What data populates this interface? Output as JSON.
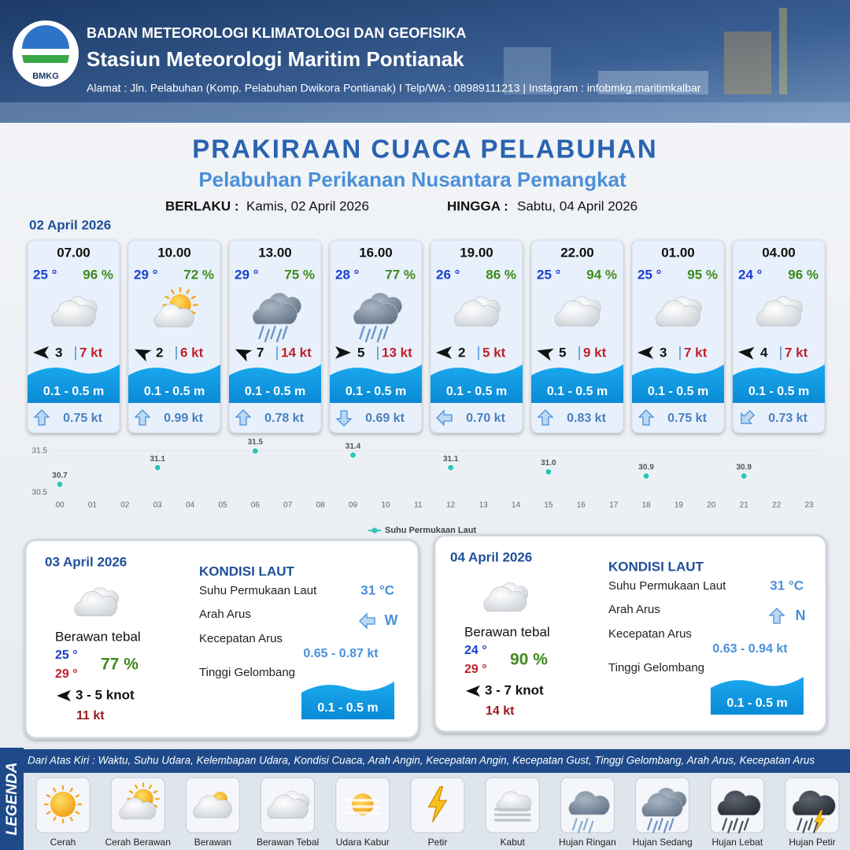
{
  "header": {
    "agency": "BADAN METEOROLOGI KLIMATOLOGI DAN GEOFISIKA",
    "station": "Stasiun Meteorologi Maritim Pontianak",
    "address": "Alamat : Jln. Pelabuhan (Komp. Pelabuhan Dwikora Pontianak) I Telp/WA : 08989111213 | Instagram : infobmkg.maritimkalbar",
    "logo": "BMKG"
  },
  "title": "PRAKIRAAN CUACA PELABUHAN",
  "subtitle": "Pelabuhan Perikanan Nusantara Pemangkat",
  "validity": {
    "from_label": "BERLAKU :",
    "from": "Kamis, 02 April 2026",
    "to_label": "HINGGA :",
    "to": "Sabtu, 04 April 2026"
  },
  "today": {
    "date": "02 April 2026",
    "forecasts": [
      {
        "time": "07.00",
        "temp": "25 °",
        "humidity": "96 %",
        "wind": "3",
        "gust": "7 kt",
        "wave": "0.1 - 0.5 m",
        "current": "0.75 kt"
      },
      {
        "time": "10.00",
        "temp": "29 °",
        "humidity": "72 %",
        "wind": "2",
        "gust": "6 kt",
        "wave": "0.1 - 0.5 m",
        "current": "0.99 kt"
      },
      {
        "time": "13.00",
        "temp": "29 °",
        "humidity": "75 %",
        "wind": "7",
        "gust": "14 kt",
        "wave": "0.1 - 0.5 m",
        "current": "0.78 kt"
      },
      {
        "time": "16.00",
        "temp": "28 °",
        "humidity": "77 %",
        "wind": "5",
        "gust": "13 kt",
        "wave": "0.1 - 0.5 m",
        "current": "0.69 kt"
      },
      {
        "time": "19.00",
        "temp": "26 °",
        "humidity": "86 %",
        "wind": "2",
        "gust": "5 kt",
        "wave": "0.1 - 0.5 m",
        "current": "0.70 kt"
      },
      {
        "time": "22.00",
        "temp": "25 °",
        "humidity": "94 %",
        "wind": "5",
        "gust": "9 kt",
        "wave": "0.1 - 0.5 m",
        "current": "0.83 kt"
      },
      {
        "time": "01.00",
        "temp": "25 °",
        "humidity": "95 %",
        "wind": "3",
        "gust": "7 kt",
        "wave": "0.1 - 0.5 m",
        "current": "0.75 kt"
      },
      {
        "time": "04.00",
        "temp": "24 °",
        "humidity": "96 %",
        "wind": "4",
        "gust": "7 kt",
        "wave": "0.1 - 0.5 m",
        "current": "0.73 kt"
      }
    ]
  },
  "chart_data": {
    "type": "scatter",
    "categories": [
      "00",
      "01",
      "02",
      "03",
      "04",
      "05",
      "06",
      "07",
      "08",
      "09",
      "10",
      "11",
      "12",
      "13",
      "14",
      "15",
      "16",
      "17",
      "18",
      "19",
      "20",
      "21",
      "22",
      "23"
    ],
    "series": [
      {
        "name": "Suhu Permukaan Laut",
        "color": "#2ec4b6",
        "values": [
          30.7,
          null,
          null,
          31.1,
          null,
          null,
          31.5,
          null,
          null,
          31.4,
          null,
          null,
          31.1,
          null,
          null,
          31.0,
          null,
          null,
          30.9,
          null,
          null,
          30.9,
          null,
          null
        ],
        "value_labels": [
          "30.7",
          null,
          null,
          "31.1",
          null,
          null,
          "31.5",
          null,
          null,
          "31.4",
          null,
          null,
          "31.1",
          null,
          null,
          "31.0",
          null,
          null,
          "30.9",
          null,
          null,
          "30.9",
          null,
          null
        ]
      }
    ],
    "ylim": [
      30.5,
      31.5
    ],
    "yticks": [
      30.5,
      31.5
    ],
    "grid": true
  },
  "days": [
    {
      "date": "03 April 2026",
      "condition": "Berawan tebal",
      "temp_min": "25 °",
      "temp_max": "29 °",
      "humidity": "77 %",
      "wind": "3  - 5 knot",
      "gust": "11 kt",
      "sea": {
        "heading": "KONDISI LAUT",
        "sst_label": "Suhu Permukaan Laut",
        "sst": "31 °C",
        "current_dir_label": "Arah Arus",
        "current_dir": "W",
        "current_speed_label": "Kecepatan Arus",
        "current_speed": "0.65 - 0.87 kt",
        "wave_label": "Tinggi Gelombang",
        "wave": "0.1 - 0.5 m"
      }
    },
    {
      "date": "04 April 2026",
      "condition": "Berawan tebal",
      "temp_min": "24 °",
      "temp_max": "29 °",
      "humidity": "90 %",
      "wind": "3  - 7 knot",
      "gust": "14 kt",
      "sea": {
        "heading": "KONDISI LAUT",
        "sst_label": "Suhu Permukaan Laut",
        "sst": "31 °C",
        "current_dir_label": "Arah Arus",
        "current_dir": "N",
        "current_speed_label": "Kecepatan Arus",
        "current_speed": "0.63 - 0.94 kt",
        "wave_label": "Tinggi Gelombang",
        "wave": "0.1 - 0.5 m"
      }
    }
  ],
  "legend": {
    "heading": "LEGENDA",
    "description": "Dari Atas Kiri : Waktu, Suhu Udara, Kelembapan Udara, Kondisi Cuaca, Arah Angin, Kecepatan Angin, Kecepatan Gust, Tinggi Gelombang, Arah Arus, Kecepatan Arus",
    "items": [
      "Cerah",
      "Cerah Berawan",
      "Berawan",
      "Berawan Tebal",
      "Udara Kabur",
      "Petir",
      "Kabut",
      "Hujan Ringan",
      "Hujan Sedang",
      "Hujan Lebat",
      "Hujan Petir"
    ]
  }
}
